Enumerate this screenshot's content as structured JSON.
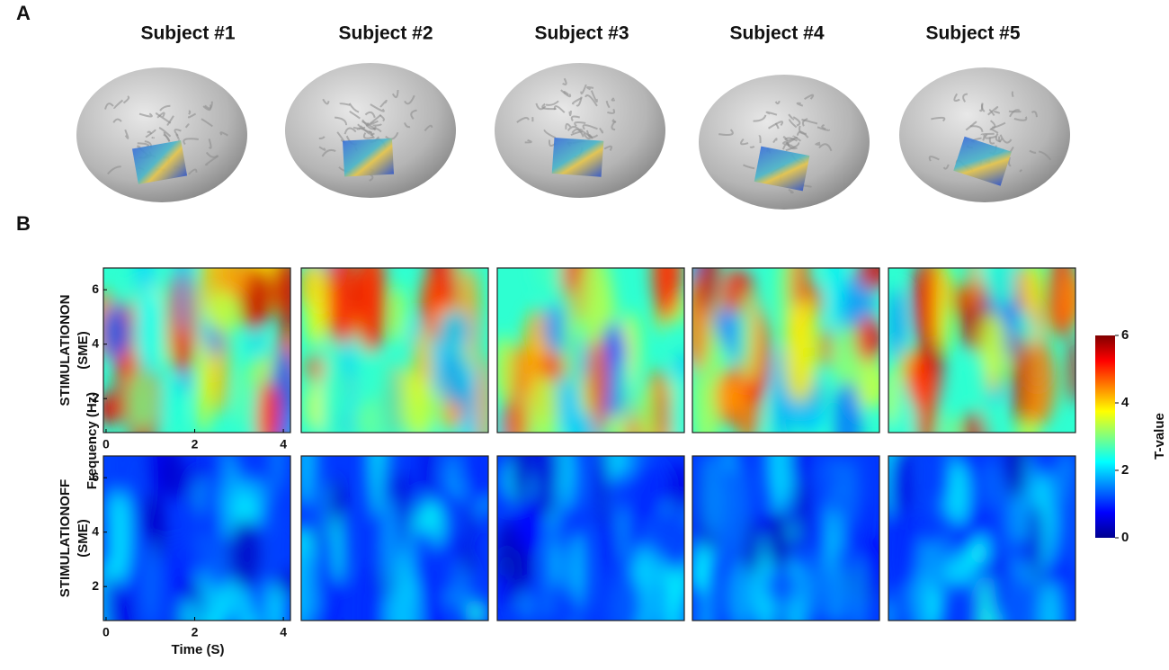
{
  "panels": {
    "a": "A",
    "b": "B"
  },
  "subjects": [
    "Subject #1",
    "Subject #2",
    "Subject #3",
    "Subject #4",
    "Subject #5"
  ],
  "rows": [
    {
      "label": "STIMULATIONON",
      "sub": "(SME)"
    },
    {
      "label": "STIMULATIONOFF",
      "sub": "(SME)"
    }
  ],
  "x_axis": {
    "label": "Time  (S)",
    "lim": [
      -0.06,
      4.16
    ],
    "ticks": [
      0,
      2,
      4
    ]
  },
  "y_axis": {
    "label": "Frequency (Hz)",
    "lim": [
      0.75,
      6.8
    ],
    "ticks": [
      2,
      4,
      6
    ]
  },
  "colorbar": {
    "label": "T-value",
    "lim": [
      0,
      6
    ],
    "ticks": [
      0,
      2,
      4,
      6
    ]
  }
}
